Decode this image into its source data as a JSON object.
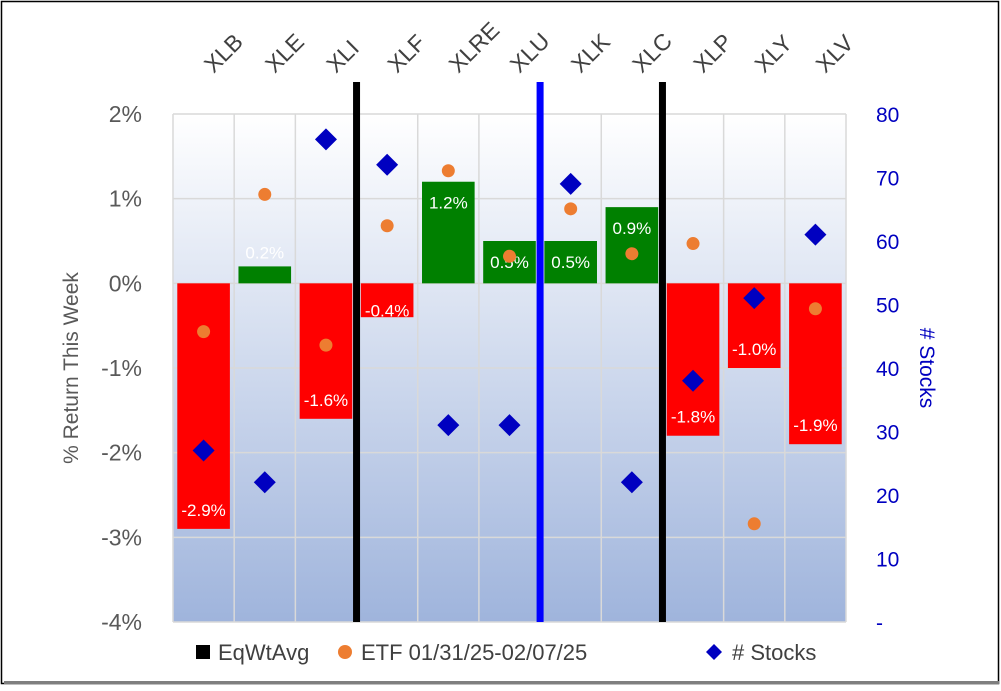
{
  "chart_data": {
    "type": "bar",
    "categories": [
      "XLB",
      "XLE",
      "XLI",
      "XLF",
      "XLRE",
      "XLU",
      "XLK",
      "XLC",
      "XLP",
      "XLY",
      "XLV"
    ],
    "series": [
      {
        "name": "EqWtAvg",
        "kind": "bar",
        "axis": "left",
        "values": [
          -2.9,
          0.2,
          -1.6,
          -0.4,
          1.2,
          0.5,
          0.5,
          0.9,
          -1.8,
          -1.0,
          -1.9
        ]
      },
      {
        "name": "ETF 01/31/25-02/07/25",
        "kind": "dot",
        "axis": "left",
        "values": [
          -0.57,
          1.05,
          -0.73,
          0.68,
          1.33,
          0.32,
          0.88,
          0.35,
          0.47,
          -2.84,
          -0.3
        ]
      },
      {
        "name": "# Stocks",
        "kind": "diamond",
        "axis": "right",
        "values": [
          27,
          22,
          76,
          72,
          31,
          31,
          69,
          22,
          38,
          51,
          61
        ]
      }
    ],
    "bar_labels": [
      "-2.9%",
      "0.2%",
      "-1.6%",
      "-0.4%",
      "1.2%",
      "0.5%",
      "0.5%",
      "0.9%",
      "-1.8%",
      "-1.0%",
      "-1.9%"
    ],
    "ylabel": "% Return This Week",
    "y2label": "# Stocks",
    "ylim": [
      -4,
      2
    ],
    "y2lim": [
      0,
      80
    ],
    "yticks": [
      2,
      1,
      0,
      -1,
      -2,
      -3,
      -4
    ],
    "ytick_labels": [
      "2%",
      "1%",
      "0%",
      "-1%",
      "-2%",
      "-3%",
      "-4%"
    ],
    "y2ticks": [
      80,
      70,
      60,
      50,
      40,
      30,
      20,
      10,
      0
    ],
    "y2tick_labels": [
      "80",
      "70",
      "60",
      "50",
      "40",
      "30",
      "20",
      "10",
      "-"
    ],
    "legend": {
      "position": "bottom",
      "entries": [
        "EqWtAvg",
        "ETF 01/31/25-02/07/25",
        "# Stocks"
      ]
    },
    "separators": [
      {
        "between": [
          "XLI",
          "XLF"
        ],
        "color": "#000000"
      },
      {
        "between": [
          "XLU",
          "XLK"
        ],
        "color": "#0000ff"
      },
      {
        "between": [
          "XLC",
          "XLP"
        ],
        "color": "#000000"
      }
    ],
    "colors": {
      "positive_bar": "#008000",
      "negative_bar": "#ff0000",
      "etf_dot": "#ed7d31",
      "stocks_marker": "#0000c0",
      "left_axis_text": "#595959",
      "right_axis_text": "#0000c0",
      "grid": "#d9d9d9",
      "plot_top": "#ffffff",
      "plot_bottom": "#9fb4dc"
    },
    "grid": true
  }
}
